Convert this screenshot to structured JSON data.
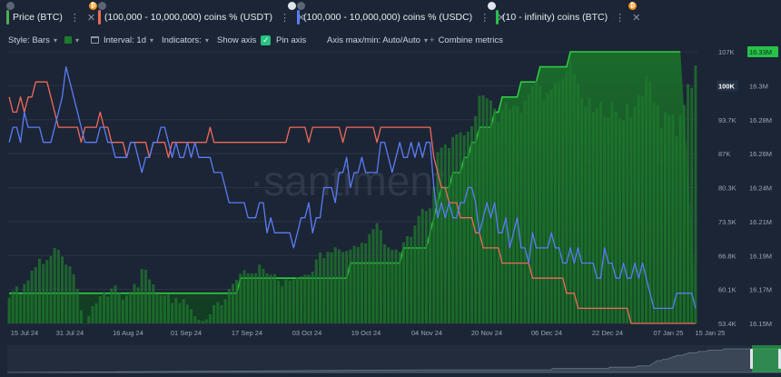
{
  "metrics": [
    {
      "label": "Price (BTC)",
      "color": "#4caf50",
      "badges": [
        "grey"
      ]
    },
    {
      "label": "(100,000 - 10,000,000) coins % (USDT)",
      "color": "#ef6a5a",
      "badges": [
        "orange",
        "grey"
      ]
    },
    {
      "label": "(100,000 - 10,000,000) coins % (USDC)",
      "color": "#5b7cf7",
      "badges": [
        "white",
        "grey"
      ]
    },
    {
      "label": "(10 - infinity) coins (BTC)",
      "color": "#26c24a",
      "badges": [
        "white",
        "orange"
      ]
    }
  ],
  "options": {
    "style_label": "Style: Bars",
    "interval_label": "Interval: 1d",
    "indicators_label": "Indicators:",
    "show_axis_label": "Show axis",
    "pin_axis_label": "Pin axis",
    "axis_minmax_label": "Axis max/min: Auto/Auto",
    "combine_label": "Combine metrics"
  },
  "watermark": "·santiment·",
  "chart_data": {
    "type": "line",
    "x_ticks": [
      "15 Jul 24",
      "31 Jul 24",
      "16 Aug 24",
      "01 Sep 24",
      "17 Sep 24",
      "03 Oct 24",
      "19 Oct 24",
      "04 Nov 24",
      "20 Nov 24",
      "06 Dec 24",
      "22 Dec 24",
      "07 Jan 25",
      "15 Jan 25"
    ],
    "y_left_ticks": [
      "107K",
      "100K",
      "93.7K",
      "87K",
      "80.3K",
      "73.5K",
      "66.8K",
      "60.1K",
      "53.4K"
    ],
    "y_left_highlight": "100K",
    "y_right_ticks": [
      "16.33M",
      "16.3M",
      "16.28M",
      "16.26M",
      "16.24M",
      "16.21M",
      "16.19M",
      "16.17M",
      "16.15M"
    ],
    "y_right_highlight": "16.33M",
    "ylim_left": [
      53400,
      107000
    ],
    "ylim_right": [
      16.15,
      16.33
    ],
    "series": [
      {
        "name": "Price (BTC)",
        "type": "bar",
        "color": "#1f7a2e",
        "values": [
          58.4,
          59.8,
          60.7,
          59.1,
          61.2,
          61.9,
          63.8,
          64.5,
          66.2,
          65.1,
          65.9,
          66.7,
          68.3,
          67.9,
          66.6,
          65.0,
          64.7,
          63.1,
          60.2,
          56.0,
          53.0,
          54.9,
          56.8,
          57.4,
          58.8,
          59.6,
          58.7,
          60.3,
          60.9,
          59.4,
          58.1,
          58.9,
          59.7,
          61.2,
          60.5,
          64.2,
          64.0,
          62.1,
          61.1,
          59.3,
          59.0,
          58.9,
          59.1,
          57.4,
          58.4,
          57.4,
          58.2,
          57.1,
          56.2,
          54.8,
          54.1,
          53.9,
          54.2,
          55.2,
          57.0,
          57.6,
          57.0,
          58.2,
          60.2,
          61.2,
          62.0,
          63.2,
          63.9,
          63.3,
          63.3,
          63.3,
          65.0,
          64.2,
          63.3,
          63.0,
          63.1,
          61.8,
          60.7,
          62.1,
          61.8,
          62.1,
          62.5,
          62.7,
          63.0,
          63.0,
          63.6,
          66.0,
          67.4,
          66.3,
          67.5,
          67.4,
          68.4,
          68.0,
          67.5,
          67.7,
          68.0,
          68.7,
          68.5,
          69.3,
          69.2,
          71.0,
          72.0,
          73.2,
          71.8,
          69.0,
          68.4,
          67.9,
          68.0,
          67.5,
          69.4,
          70.6,
          70.5,
          72.7,
          74.6,
          76.0,
          75.6,
          76.1,
          80.4,
          87.2,
          88.1,
          88.7,
          88.0,
          90.2,
          90.7,
          91.1,
          90.5,
          91.2,
          92.3,
          94.3,
          98.3,
          98.4,
          97.8,
          97.4,
          95.8,
          93.2,
          95.6,
          97.0,
          95.6,
          96.4,
          96.3,
          95.0,
          97.4,
          98.5,
          100.2,
          101.3,
          100.3,
          97.6,
          98.9,
          99.6,
          101.0,
          101.0,
          101.7,
          103.3,
          105.1,
          102.5,
          100.7,
          97.9,
          96.2,
          98.0,
          95.1,
          95.9,
          97.1,
          94.2,
          94.1,
          97.1,
          95.2,
          93.9,
          93.5,
          96.6,
          94.2,
          96.2,
          98.5,
          98.3,
          102.1,
          101.1,
          96.9,
          96.5,
          92.0,
          95.1,
          94.6,
          94.6,
          90.4,
          94.5,
          96.5,
          100.6,
          99.9,
          104.3
        ]
      },
      {
        "name": "(100,000 - 10,000,000) coins % (USDT)",
        "type": "line",
        "color": "#ef6a5a",
        "values": [
          16.3,
          16.29,
          16.29,
          16.3,
          16.29,
          16.3,
          16.3,
          16.31,
          16.31,
          16.31,
          16.31,
          16.3,
          16.29,
          16.28,
          16.28,
          16.28,
          16.28,
          16.28,
          16.28,
          16.27,
          16.28,
          16.28,
          16.28,
          16.28,
          16.29,
          16.28,
          16.28,
          16.27,
          16.27,
          16.27,
          16.27,
          16.26,
          16.27,
          16.27,
          16.27,
          16.27,
          16.27,
          16.26,
          16.27,
          16.27,
          16.27,
          16.27,
          16.26,
          16.27,
          16.27,
          16.27,
          16.27,
          16.27,
          16.27,
          16.27,
          16.27,
          16.27,
          16.27,
          16.28,
          16.27,
          16.27,
          16.27,
          16.27,
          16.27,
          16.27,
          16.27,
          16.27,
          16.27,
          16.27,
          16.27,
          16.27,
          16.27,
          16.27,
          16.27,
          16.27,
          16.27,
          16.27,
          16.27,
          16.27,
          16.28,
          16.28,
          16.28,
          16.28,
          16.28,
          16.27,
          16.28,
          16.28,
          16.28,
          16.28,
          16.28,
          16.28,
          16.28,
          16.28,
          16.27,
          16.28,
          16.28,
          16.28,
          16.28,
          16.28,
          16.28,
          16.28,
          16.28,
          16.27,
          16.28,
          16.28,
          16.28,
          16.28,
          16.28,
          16.28,
          16.28,
          16.28,
          16.28,
          16.28,
          16.28,
          16.28,
          16.28,
          16.28,
          16.26,
          16.25,
          16.24,
          16.24,
          16.23,
          16.23,
          16.23,
          16.22,
          16.22,
          16.22,
          16.22,
          16.21,
          16.21,
          16.2,
          16.2,
          16.2,
          16.2,
          16.2,
          16.19,
          16.19,
          16.19,
          16.19,
          16.19,
          16.19,
          16.19,
          16.19,
          16.18,
          16.18,
          16.18,
          16.18,
          16.18,
          16.18,
          16.18,
          16.18,
          16.18,
          16.17,
          16.17,
          16.17,
          16.16,
          16.16,
          16.16,
          16.16,
          16.16,
          16.16,
          16.16,
          16.16,
          16.16,
          16.16,
          16.16,
          16.16,
          16.16,
          16.16,
          16.15,
          16.15,
          16.15,
          16.15,
          16.15,
          16.15,
          16.15,
          16.15,
          16.15,
          16.15,
          16.15,
          16.15,
          16.15,
          16.15,
          16.15,
          16.15,
          16.15,
          16.15
        ]
      },
      {
        "name": "(100,000 - 10,000,000) coins % (USDC)",
        "type": "line",
        "color": "#5b7cf7",
        "values": [
          16.27,
          16.28,
          16.28,
          16.27,
          16.29,
          16.28,
          16.28,
          16.28,
          16.28,
          16.27,
          16.27,
          16.27,
          16.28,
          16.29,
          16.3,
          16.32,
          16.31,
          16.3,
          16.29,
          16.28,
          16.27,
          16.27,
          16.27,
          16.27,
          16.28,
          16.28,
          16.27,
          16.27,
          16.26,
          16.26,
          16.26,
          16.26,
          16.27,
          16.27,
          16.26,
          16.25,
          16.26,
          16.26,
          16.27,
          16.27,
          16.28,
          16.28,
          16.27,
          16.26,
          16.27,
          16.26,
          16.26,
          16.27,
          16.26,
          16.27,
          16.26,
          16.26,
          16.26,
          16.26,
          16.25,
          16.25,
          16.25,
          16.24,
          16.23,
          16.23,
          16.23,
          16.23,
          16.23,
          16.22,
          16.22,
          16.22,
          16.23,
          16.23,
          16.21,
          16.22,
          16.21,
          16.21,
          16.21,
          16.21,
          16.21,
          16.2,
          16.21,
          16.22,
          16.22,
          16.23,
          16.21,
          16.22,
          16.22,
          16.24,
          16.24,
          16.24,
          16.23,
          16.25,
          16.25,
          16.26,
          16.24,
          16.25,
          16.25,
          16.26,
          16.25,
          16.25,
          16.25,
          16.25,
          16.27,
          16.27,
          16.26,
          16.25,
          16.26,
          16.27,
          16.26,
          16.26,
          16.27,
          16.26,
          16.27,
          16.26,
          16.27,
          16.27,
          16.24,
          16.22,
          16.23,
          16.22,
          16.23,
          16.22,
          16.22,
          16.23,
          16.23,
          16.24,
          16.24,
          16.23,
          16.21,
          16.22,
          16.23,
          16.22,
          16.23,
          16.21,
          16.21,
          16.22,
          16.2,
          16.21,
          16.22,
          16.2,
          16.2,
          16.19,
          16.21,
          16.2,
          16.2,
          16.2,
          16.2,
          16.21,
          16.2,
          16.2,
          16.19,
          16.19,
          16.2,
          16.19,
          16.2,
          16.19,
          16.19,
          16.19,
          16.19,
          16.18,
          16.18,
          16.2,
          16.19,
          16.19,
          16.18,
          16.18,
          16.19,
          16.18,
          16.18,
          16.19,
          16.18,
          16.19,
          16.18,
          16.17,
          16.16,
          16.16,
          16.16,
          16.16,
          16.16,
          16.16,
          16.17,
          16.17,
          16.17,
          16.17,
          16.17,
          16.16
        ]
      },
      {
        "name": "(10 - infinity) coins (BTC)",
        "type": "area",
        "color": "#2ecc40",
        "values": [
          16.17,
          16.17,
          16.17,
          16.17,
          16.17,
          16.17,
          16.17,
          16.17,
          16.17,
          16.17,
          16.17,
          16.17,
          16.17,
          16.17,
          16.17,
          16.17,
          16.17,
          16.17,
          16.17,
          16.17,
          16.17,
          16.17,
          16.17,
          16.17,
          16.17,
          16.17,
          16.17,
          16.17,
          16.17,
          16.17,
          16.17,
          16.17,
          16.17,
          16.17,
          16.17,
          16.17,
          16.17,
          16.17,
          16.17,
          16.17,
          16.17,
          16.17,
          16.17,
          16.17,
          16.17,
          16.17,
          16.17,
          16.17,
          16.17,
          16.17,
          16.17,
          16.17,
          16.17,
          16.17,
          16.17,
          16.17,
          16.17,
          16.17,
          16.17,
          16.17,
          16.17,
          16.18,
          16.18,
          16.18,
          16.18,
          16.18,
          16.18,
          16.18,
          16.18,
          16.18,
          16.18,
          16.18,
          16.18,
          16.18,
          16.18,
          16.18,
          16.18,
          16.18,
          16.18,
          16.18,
          16.18,
          16.18,
          16.18,
          16.18,
          16.18,
          16.18,
          16.18,
          16.18,
          16.18,
          16.18,
          16.19,
          16.19,
          16.19,
          16.19,
          16.19,
          16.19,
          16.19,
          16.19,
          16.19,
          16.19,
          16.19,
          16.19,
          16.19,
          16.19,
          16.2,
          16.2,
          16.2,
          16.2,
          16.2,
          16.2,
          16.2,
          16.21,
          16.22,
          16.23,
          16.24,
          16.24,
          16.24,
          16.25,
          16.25,
          16.25,
          16.26,
          16.26,
          16.27,
          16.27,
          16.28,
          16.28,
          16.28,
          16.28,
          16.29,
          16.29,
          16.3,
          16.3,
          16.3,
          16.3,
          16.3,
          16.31,
          16.31,
          16.31,
          16.31,
          16.31,
          16.32,
          16.32,
          16.32,
          16.32,
          16.32,
          16.32,
          16.32,
          16.32,
          16.33,
          16.33,
          16.33,
          16.33,
          16.33,
          16.33,
          16.33,
          16.33,
          16.33,
          16.33,
          16.33,
          16.33,
          16.33,
          16.33,
          16.33,
          16.33,
          16.33,
          16.33,
          16.33,
          16.33,
          16.33,
          16.33,
          16.33,
          16.33,
          16.33,
          16.33,
          16.33,
          16.33,
          16.33,
          16.33
        ]
      }
    ]
  }
}
